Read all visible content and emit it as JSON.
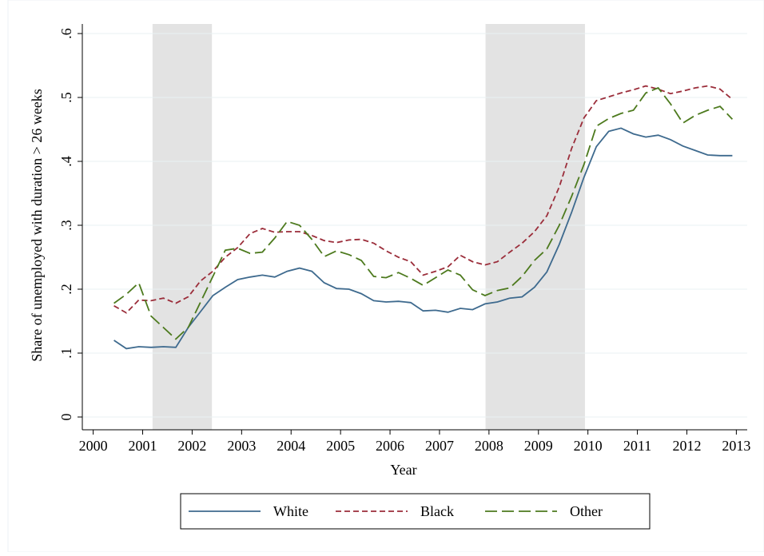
{
  "chart_data": {
    "type": "line",
    "xlabel": "Year",
    "ylabel": "Share of unemployed with duration > 26 weeks",
    "x": [
      2000.42,
      2000.67,
      2000.92,
      2001.17,
      2001.42,
      2001.67,
      2001.92,
      2002.17,
      2002.42,
      2002.67,
      2002.92,
      2003.17,
      2003.42,
      2003.67,
      2003.92,
      2004.17,
      2004.42,
      2004.67,
      2004.92,
      2005.17,
      2005.42,
      2005.67,
      2005.92,
      2006.17,
      2006.42,
      2006.67,
      2006.92,
      2007.17,
      2007.42,
      2007.67,
      2007.92,
      2008.17,
      2008.42,
      2008.67,
      2008.92,
      2009.17,
      2009.42,
      2009.67,
      2009.92,
      2010.17,
      2010.42,
      2010.67,
      2010.92,
      2011.17,
      2011.42,
      2011.67,
      2011.92,
      2012.17,
      2012.42,
      2012.67,
      2012.92
    ],
    "series": [
      {
        "name": "White",
        "color": "#3e6a8e",
        "dash": "none",
        "values": [
          0.12,
          0.107,
          0.11,
          0.109,
          0.11,
          0.109,
          0.14,
          0.165,
          0.19,
          0.203,
          0.215,
          0.219,
          0.222,
          0.219,
          0.228,
          0.233,
          0.228,
          0.21,
          0.201,
          0.2,
          0.193,
          0.182,
          0.18,
          0.181,
          0.179,
          0.166,
          0.167,
          0.164,
          0.17,
          0.168,
          0.177,
          0.18,
          0.186,
          0.188,
          0.203,
          0.227,
          0.27,
          0.32,
          0.375,
          0.423,
          0.447,
          0.452,
          0.443,
          0.438,
          0.441,
          0.434,
          0.424,
          0.417,
          0.41,
          0.409,
          0.409
        ]
      },
      {
        "name": "Black",
        "color": "#9b2d3a",
        "dash": "7,4",
        "values": [
          0.174,
          0.163,
          0.183,
          0.182,
          0.186,
          0.178,
          0.188,
          0.213,
          0.228,
          0.25,
          0.265,
          0.287,
          0.295,
          0.289,
          0.29,
          0.29,
          0.284,
          0.276,
          0.273,
          0.277,
          0.278,
          0.272,
          0.26,
          0.25,
          0.243,
          0.222,
          0.228,
          0.235,
          0.253,
          0.243,
          0.238,
          0.243,
          0.258,
          0.272,
          0.29,
          0.315,
          0.36,
          0.42,
          0.468,
          0.495,
          0.501,
          0.507,
          0.512,
          0.518,
          0.513,
          0.506,
          0.51,
          0.515,
          0.518,
          0.513,
          0.497
        ]
      },
      {
        "name": "Other",
        "color": "#4d7a1e",
        "dash": "15,6",
        "values": [
          0.178,
          0.192,
          0.21,
          0.158,
          0.14,
          0.122,
          0.14,
          0.18,
          0.22,
          0.261,
          0.264,
          0.256,
          0.258,
          0.28,
          0.306,
          0.3,
          0.278,
          0.251,
          0.26,
          0.254,
          0.245,
          0.22,
          0.218,
          0.226,
          0.217,
          0.206,
          0.218,
          0.23,
          0.222,
          0.199,
          0.19,
          0.198,
          0.202,
          0.22,
          0.245,
          0.263,
          0.3,
          0.345,
          0.395,
          0.455,
          0.467,
          0.475,
          0.48,
          0.507,
          0.515,
          0.49,
          0.46,
          0.472,
          0.48,
          0.486,
          0.466
        ]
      }
    ],
    "shaded_periods": [
      [
        2001.2,
        2002.4
      ],
      [
        2007.93,
        2009.94
      ]
    ],
    "shade_color": "#e3e3e3",
    "xlim": [
      1999.78,
      2013.22
    ],
    "ylim": [
      -0.02,
      0.615
    ],
    "xticks": [
      2000,
      2001,
      2002,
      2003,
      2004,
      2005,
      2006,
      2007,
      2008,
      2009,
      2010,
      2011,
      2012,
      2013
    ],
    "yticks": [
      0,
      {
        "value": 0.1,
        "label": ".1"
      },
      {
        "value": 0.2,
        "label": ".2"
      },
      {
        "value": 0.3,
        "label": ".3"
      },
      {
        "value": 0.4,
        "label": ".4"
      },
      {
        "value": 0.5,
        "label": ".5"
      },
      {
        "value": 0.6,
        "label": ".6"
      }
    ],
    "grid": true,
    "legend": "bottom"
  }
}
